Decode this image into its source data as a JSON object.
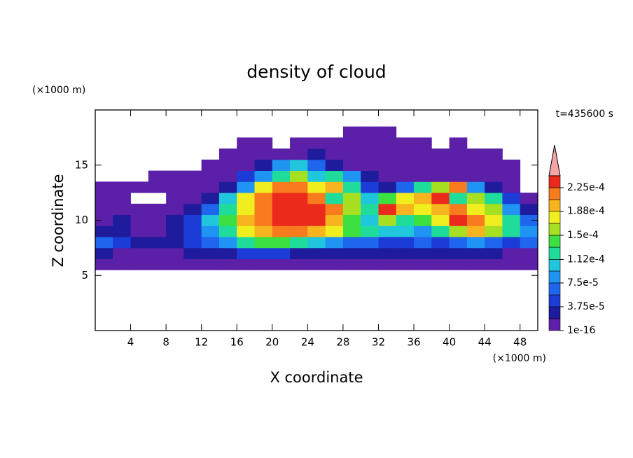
{
  "chart_data": {
    "type": "contour",
    "title": "density of cloud",
    "subtitle": "t=435600 s",
    "xlabel": "X coordinate",
    "ylabel": "Z coordinate",
    "xunit": "(×1000 m)",
    "yunit": "(×1000 m)",
    "xlim": [
      0,
      50
    ],
    "ylim": [
      0,
      20
    ],
    "xticks": [
      4,
      8,
      12,
      16,
      20,
      24,
      28,
      32,
      36,
      40,
      44,
      48
    ],
    "yticks": [
      5,
      10,
      15
    ],
    "x": [
      1,
      3,
      5,
      7,
      9,
      11,
      13,
      15,
      17,
      19,
      21,
      23,
      25,
      27,
      29,
      31,
      33,
      35,
      37,
      39,
      41,
      43,
      45,
      47,
      49
    ],
    "z": [
      6,
      7,
      8,
      9,
      10,
      11,
      12,
      13,
      14,
      15,
      16,
      17,
      18
    ],
    "values": [
      [
        1e-05,
        1e-05,
        1e-05,
        1e-05,
        1e-05,
        1e-05,
        1e-05,
        1e-05,
        1e-05,
        1e-05,
        1e-05,
        1e-05,
        1e-05,
        1e-05,
        1e-05,
        1e-05,
        1e-05,
        1e-05,
        1e-05,
        1e-05,
        1e-05,
        1e-05,
        1e-05,
        1e-05,
        1e-05
      ],
      [
        2.8e-05,
        1e-05,
        1e-05,
        1e-05,
        1e-05,
        2.8e-05,
        2.8e-05,
        2.8e-05,
        4.7e-05,
        4.7e-05,
        4.7e-05,
        2.8e-05,
        2.8e-05,
        2.8e-05,
        2.8e-05,
        2.8e-05,
        2.8e-05,
        2.8e-05,
        2.8e-05,
        2.8e-05,
        2.8e-05,
        2.8e-05,
        2.8e-05,
        1e-05,
        1e-05
      ],
      [
        6.6e-05,
        4.7e-05,
        2.8e-05,
        2.8e-05,
        2.8e-05,
        4.7e-05,
        6.6e-05,
        8.4e-05,
        0.000122,
        0.000141,
        0.000141,
        0.000122,
        0.000103,
        8.4e-05,
        6.6e-05,
        6.6e-05,
        4.7e-05,
        4.7e-05,
        6.6e-05,
        4.7e-05,
        6.6e-05,
        8.4e-05,
        6.6e-05,
        4.7e-05,
        6.6e-05
      ],
      [
        2.8e-05,
        2.8e-05,
        1e-05,
        1e-05,
        2.8e-05,
        4.7e-05,
        8.4e-05,
        0.000122,
        0.000178,
        0.000197,
        0.000216,
        0.000216,
        0.000197,
        0.000178,
        0.000141,
        0.000122,
        0.000103,
        0.000103,
        8.4e-05,
        0.000122,
        0.000159,
        0.000197,
        0.000159,
        0.000122,
        8.4e-05
      ],
      [
        1e-05,
        2.8e-05,
        1e-05,
        1e-05,
        2.8e-05,
        4.7e-05,
        0.000103,
        0.000141,
        0.000197,
        0.000216,
        0.000234,
        0.000234,
        0.000234,
        0.000197,
        0.000141,
        0.000103,
        0.000159,
        0.000122,
        0.000141,
        0.000178,
        0.000234,
        0.000216,
        0.000178,
        0.000122,
        6.6e-05
      ],
      [
        1e-05,
        1e-05,
        1e-05,
        1e-05,
        1e-05,
        2.8e-05,
        6.6e-05,
        0.000122,
        0.000178,
        0.000216,
        0.000234,
        0.000234,
        0.000234,
        0.000216,
        0.000159,
        0.000122,
        0.000234,
        0.000197,
        0.000178,
        0.000197,
        0.000216,
        0.000178,
        0.000159,
        8.4e-05,
        2.8e-05
      ],
      [
        1e-05,
        1e-05,
        null,
        null,
        1e-05,
        1e-05,
        2.8e-05,
        0.000103,
        0.000178,
        0.000216,
        0.000234,
        0.000234,
        0.000216,
        0.000122,
        0.000159,
        0.000103,
        0.000141,
        0.000178,
        0.000197,
        0.000234,
        0.000122,
        0.000159,
        0.000122,
        4.7e-05,
        1e-05
      ],
      [
        1e-05,
        1e-05,
        1e-05,
        1e-05,
        1e-05,
        1e-05,
        1e-05,
        2.8e-05,
        8.4e-05,
        0.000178,
        0.000216,
        0.000216,
        0.000178,
        0.000197,
        0.000122,
        4.7e-05,
        2.8e-05,
        6.6e-05,
        0.000122,
        0.000159,
        0.000216,
        8.4e-05,
        2.8e-05,
        1e-05,
        null
      ],
      [
        null,
        null,
        null,
        1e-05,
        1e-05,
        1e-05,
        1e-05,
        1e-05,
        4.7e-05,
        8.4e-05,
        0.000122,
        0.000159,
        0.000103,
        0.000122,
        8.4e-05,
        2.8e-05,
        1e-05,
        1e-05,
        1e-05,
        1e-05,
        1e-05,
        1e-05,
        1e-05,
        1e-05,
        null
      ],
      [
        null,
        null,
        null,
        null,
        null,
        null,
        1e-05,
        1e-05,
        1e-05,
        2.8e-05,
        8.4e-05,
        0.000103,
        6.6e-05,
        2.8e-05,
        1e-05,
        1e-05,
        1e-05,
        1e-05,
        1e-05,
        1e-05,
        1e-05,
        1e-05,
        1e-05,
        1e-05,
        null
      ],
      [
        null,
        null,
        null,
        null,
        null,
        null,
        null,
        1e-05,
        1e-05,
        1e-05,
        1e-05,
        1e-05,
        2.8e-05,
        1e-05,
        1e-05,
        1e-05,
        1e-05,
        1e-05,
        1e-05,
        1e-05,
        1e-05,
        1e-05,
        1e-05,
        null,
        null
      ],
      [
        null,
        null,
        null,
        null,
        null,
        null,
        null,
        null,
        1e-05,
        1e-05,
        null,
        1e-05,
        1e-05,
        1e-05,
        1e-05,
        1e-05,
        1e-05,
        1e-05,
        1e-05,
        null,
        1e-05,
        null,
        null,
        null,
        null
      ],
      [
        null,
        null,
        null,
        null,
        null,
        null,
        null,
        null,
        null,
        null,
        null,
        null,
        null,
        null,
        1e-05,
        1e-05,
        1e-05,
        null,
        null,
        null,
        null,
        null,
        null,
        null,
        null
      ]
    ],
    "colorbar": {
      "levels": [
        1e-16,
        1.875e-05,
        3.75e-05,
        5.625e-05,
        7.5e-05,
        9.375e-05,
        0.000112,
        0.00013125,
        0.00015,
        0.00016875,
        0.000188,
        0.00020625,
        0.000225,
        0.00024375
      ],
      "colors": [
        "#5b1fa8",
        "#1e1c9c",
        "#1c3cd8",
        "#1f66ee",
        "#1f94f2",
        "#1fc6dc",
        "#1fdc9a",
        "#3ce040",
        "#a6e022",
        "#f0ee1e",
        "#f8b41e",
        "#f87c1e",
        "#ec2a1c"
      ],
      "over_color": "#f4a4a4",
      "ticks": [
        {
          "value": 1e-16,
          "label": "1e-16"
        },
        {
          "value": 3.75e-05,
          "label": "3.75e-5"
        },
        {
          "value": 7.5e-05,
          "label": "7.5e-5"
        },
        {
          "value": 0.000112,
          "label": "1.12e-4"
        },
        {
          "value": 0.00015,
          "label": "1.5e-4"
        },
        {
          "value": 0.000188,
          "label": "1.88e-4"
        },
        {
          "value": 0.000225,
          "label": "2.25e-4"
        }
      ]
    }
  }
}
